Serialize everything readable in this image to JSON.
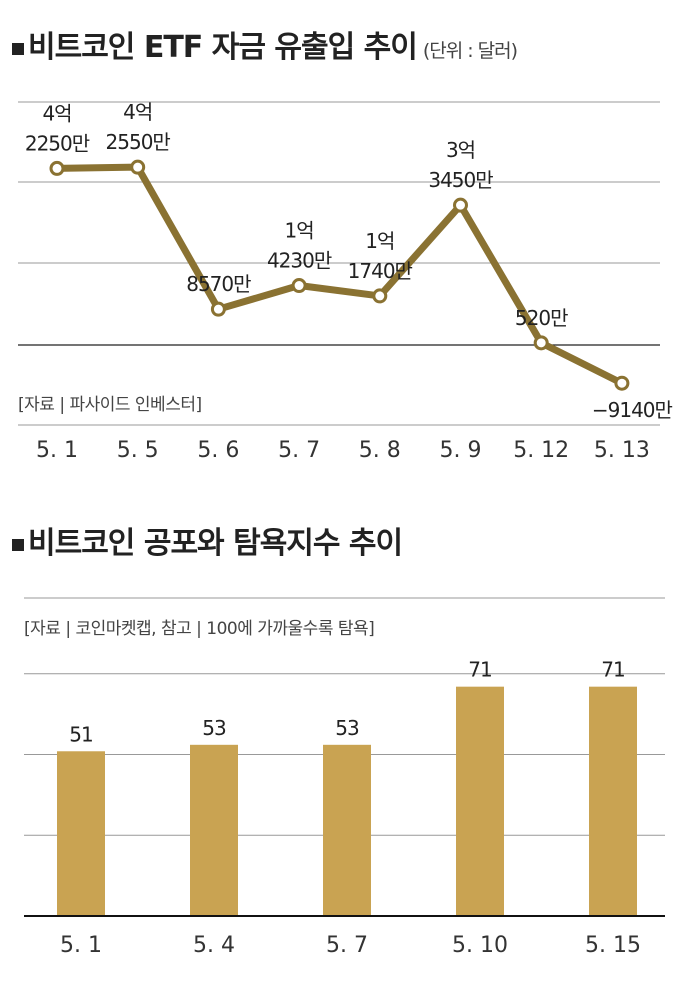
{
  "chart_data": [
    {
      "type": "line",
      "title": "비트코인 ETF 자금 유출입 추이",
      "unit": "(단위 : 달러)",
      "source": "[자료 | 파사이드 인베스터]",
      "categories": [
        "5. 1",
        "5. 5",
        "5. 6",
        "5. 7",
        "5. 8",
        "5. 9",
        "5. 12",
        "5. 13"
      ],
      "values": [
        42250,
        42550,
        8570,
        14230,
        11740,
        33450,
        520,
        -9140
      ],
      "value_unit": "만 달러",
      "data_labels": [
        [
          "4억",
          "2250만"
        ],
        [
          "4억",
          "2550만"
        ],
        [
          "8570만"
        ],
        [
          "1억",
          "4230만"
        ],
        [
          "1억",
          "1740만"
        ],
        [
          "3억",
          "3450만"
        ],
        [
          "520만"
        ],
        [
          "−9140만"
        ]
      ],
      "color": "#8a7232",
      "grid": true
    },
    {
      "type": "bar",
      "title": "비트코인 공포와 탐욕지수 추이",
      "source": "[자료 | 코인마켓캡, 참고 | 100에 가까울수록 탐욕]",
      "categories": [
        "5. 1",
        "5. 4",
        "5. 7",
        "5. 10",
        "5. 15"
      ],
      "values": [
        51,
        53,
        53,
        71,
        71
      ],
      "data_labels": [
        "51",
        "53",
        "53",
        "71",
        "71"
      ],
      "ylim": [
        0,
        100
      ],
      "color": "#c9a352",
      "grid": true
    }
  ]
}
